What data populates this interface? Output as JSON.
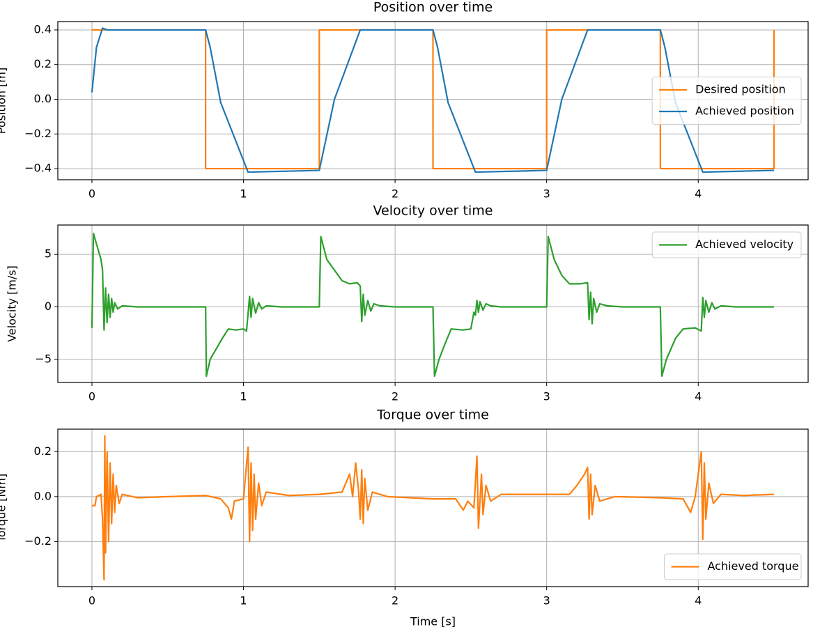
{
  "chart_data": [
    {
      "type": "line",
      "title": "Position over time",
      "ylabel": "Position [m]",
      "x": [
        0,
        0.03,
        0.07,
        0.1,
        0.75,
        0.75,
        0.78,
        0.85,
        1.03,
        1.5,
        1.5,
        1.6,
        1.77,
        2.25,
        2.25,
        2.28,
        2.35,
        2.53,
        3.0,
        3.0,
        3.1,
        3.27,
        3.75,
        3.75,
        3.78,
        3.85,
        4.03,
        4.5,
        4.5
      ],
      "series": [
        {
          "name": "Desired position",
          "color": "#ff7f0e",
          "values": [
            0.4,
            0.4,
            0.4,
            0.4,
            0.4,
            -0.4,
            -0.4,
            -0.4,
            -0.4,
            -0.4,
            0.4,
            0.4,
            0.4,
            0.4,
            -0.4,
            -0.4,
            -0.4,
            -0.4,
            -0.4,
            0.4,
            0.4,
            0.4,
            0.4,
            -0.4,
            -0.4,
            -0.4,
            -0.4,
            -0.4,
            0.4
          ]
        },
        {
          "name": "Achieved position",
          "color": "#1f77b4",
          "values": [
            0.04,
            0.3,
            0.41,
            0.4,
            0.4,
            0.4,
            0.3,
            -0.02,
            -0.42,
            -0.41,
            -0.41,
            0.0,
            0.4,
            0.4,
            0.4,
            0.3,
            -0.02,
            -0.42,
            -0.41,
            -0.41,
            0.0,
            0.4,
            0.4,
            0.4,
            0.3,
            -0.02,
            -0.42,
            -0.41,
            -0.41
          ]
        }
      ],
      "xlim": [
        -0.225,
        4.725
      ],
      "ylim": [
        -0.464,
        0.448
      ],
      "xticks": [
        0,
        1,
        2,
        3,
        4
      ],
      "yticks": [
        {
          "value": -0.4,
          "label": "−0.4"
        },
        {
          "value": -0.2,
          "label": "−0.2"
        },
        {
          "value": 0,
          "label": "0.0"
        },
        0.2,
        0.4
      ],
      "grid": true,
      "legend": "center right"
    },
    {
      "type": "line",
      "title": "Velocity over time",
      "ylabel": "Velocity [m/s]",
      "x": [
        0,
        0.01,
        0.03,
        0.06,
        0.07,
        0.08,
        0.09,
        0.1,
        0.11,
        0.12,
        0.13,
        0.14,
        0.15,
        0.17,
        0.2,
        0.3,
        0.75,
        0.755,
        0.78,
        0.82,
        0.86,
        0.9,
        0.95,
        1.0,
        1.02,
        1.04,
        1.05,
        1.06,
        1.08,
        1.1,
        1.12,
        1.15,
        1.25,
        1.5,
        1.51,
        1.55,
        1.6,
        1.65,
        1.7,
        1.75,
        1.77,
        1.78,
        1.79,
        1.8,
        1.82,
        1.84,
        1.86,
        1.9,
        2.0,
        2.25,
        2.26,
        2.29,
        2.33,
        2.37,
        2.45,
        2.5,
        2.52,
        2.53,
        2.54,
        2.55,
        2.56,
        2.58,
        2.6,
        2.63,
        2.7,
        3.0,
        3.01,
        3.05,
        3.1,
        3.15,
        3.22,
        3.27,
        3.28,
        3.29,
        3.3,
        3.31,
        3.33,
        3.35,
        3.4,
        3.5,
        3.75,
        3.76,
        3.79,
        3.85,
        3.9,
        3.98,
        4.02,
        4.03,
        4.04,
        4.05,
        4.07,
        4.09,
        4.11,
        4.15,
        4.25,
        4.5
      ],
      "series": [
        {
          "name": "Achieved velocity",
          "color": "#2ca02c",
          "values": [
            -2,
            7,
            6,
            4.5,
            3.5,
            -2.2,
            1.8,
            -1.5,
            1.2,
            -1,
            0.8,
            -0.5,
            0.4,
            -0.2,
            0.1,
            0,
            0,
            -6.6,
            -5,
            -4,
            -3,
            -2.1,
            -2.2,
            -2.1,
            -2.3,
            1,
            -1,
            0.8,
            -0.6,
            0.4,
            -0.2,
            0.1,
            0,
            0,
            6.7,
            4.5,
            3.5,
            2.5,
            2.2,
            2.3,
            2.0,
            -1.4,
            1.2,
            -0.8,
            0.6,
            -0.4,
            0.3,
            0.1,
            0,
            0,
            -6.6,
            -5,
            -3.5,
            -2.1,
            -2.2,
            -2.1,
            -0.5,
            -0.8,
            0.6,
            -0.5,
            0.5,
            -0.3,
            0.3,
            0.1,
            0,
            0,
            6.7,
            4.5,
            3,
            2.2,
            2.2,
            2.3,
            -1.2,
            1.4,
            -1.6,
            0.8,
            -0.5,
            0.3,
            0.1,
            0,
            0,
            -6.6,
            -5,
            -3,
            -2.1,
            -2.0,
            -2.3,
            0.9,
            -1,
            0.6,
            -0.5,
            0.4,
            -0.2,
            0.1,
            0,
            0
          ]
        }
      ],
      "xlim": [
        -0.225,
        4.725
      ],
      "ylim": [
        -7.2,
        7.8
      ],
      "xticks": [
        0,
        1,
        2,
        3,
        4
      ],
      "yticks": [
        {
          "value": -5,
          "label": "−5"
        },
        0,
        5
      ],
      "grid": true,
      "legend": "upper right"
    },
    {
      "type": "line",
      "title": "Torque over time",
      "ylabel": "Torque [Nm]",
      "xlabel": "Time [s]",
      "x": [
        0,
        0.02,
        0.03,
        0.06,
        0.07,
        0.08,
        0.085,
        0.09,
        0.1,
        0.11,
        0.12,
        0.13,
        0.14,
        0.15,
        0.16,
        0.18,
        0.2,
        0.3,
        0.5,
        0.75,
        0.85,
        0.9,
        0.92,
        0.94,
        1.0,
        1.03,
        1.04,
        1.05,
        1.06,
        1.07,
        1.08,
        1.1,
        1.12,
        1.15,
        1.3,
        1.5,
        1.65,
        1.7,
        1.72,
        1.74,
        1.76,
        1.77,
        1.78,
        1.79,
        1.8,
        1.82,
        1.85,
        1.95,
        2.25,
        2.4,
        2.45,
        2.48,
        2.52,
        2.54,
        2.55,
        2.57,
        2.58,
        2.6,
        2.63,
        2.7,
        3.0,
        3.15,
        3.2,
        3.25,
        3.27,
        3.28,
        3.29,
        3.3,
        3.32,
        3.35,
        3.45,
        3.75,
        3.9,
        3.95,
        3.98,
        4.02,
        4.03,
        4.04,
        4.05,
        4.07,
        4.1,
        4.15,
        4.3,
        4.5
      ],
      "series": [
        {
          "name": "Achieved torque",
          "color": "#ff7f0e",
          "values": [
            -0.04,
            -0.04,
            0.0,
            0.01,
            -0.1,
            -0.37,
            0.27,
            -0.25,
            0.2,
            -0.2,
            0.15,
            -0.12,
            0.1,
            -0.07,
            0.05,
            -0.03,
            0.01,
            -0.005,
            0,
            0.005,
            -0.01,
            -0.05,
            -0.1,
            -0.02,
            -0.01,
            0.22,
            -0.2,
            0.15,
            -0.15,
            0.1,
            -0.1,
            0.06,
            -0.04,
            0.02,
            0.005,
            0.01,
            0.02,
            0.1,
            0.0,
            0.15,
            0.02,
            -0.1,
            0.12,
            -0.12,
            0.08,
            -0.06,
            0.02,
            0,
            -0.01,
            -0.01,
            -0.06,
            -0.02,
            -0.05,
            0.18,
            -0.14,
            0.1,
            -0.08,
            0.05,
            -0.02,
            0.01,
            0.01,
            0.01,
            0.05,
            0.1,
            0.13,
            -0.1,
            0.1,
            -0.08,
            0.05,
            -0.02,
            0,
            -0.005,
            -0.01,
            -0.07,
            0,
            0.2,
            -0.19,
            0.15,
            -0.1,
            0.06,
            -0.03,
            0.01,
            0.005,
            0.01
          ]
        }
      ],
      "xlim": [
        -0.225,
        4.725
      ],
      "ylim": [
        -0.4,
        0.3
      ],
      "xticks": [
        0,
        1,
        2,
        3,
        4
      ],
      "yticks": [
        {
          "value": -0.2,
          "label": "−0.2"
        },
        {
          "value": 0,
          "label": "0.0"
        },
        0.2
      ],
      "grid": true,
      "legend": "lower right"
    }
  ]
}
